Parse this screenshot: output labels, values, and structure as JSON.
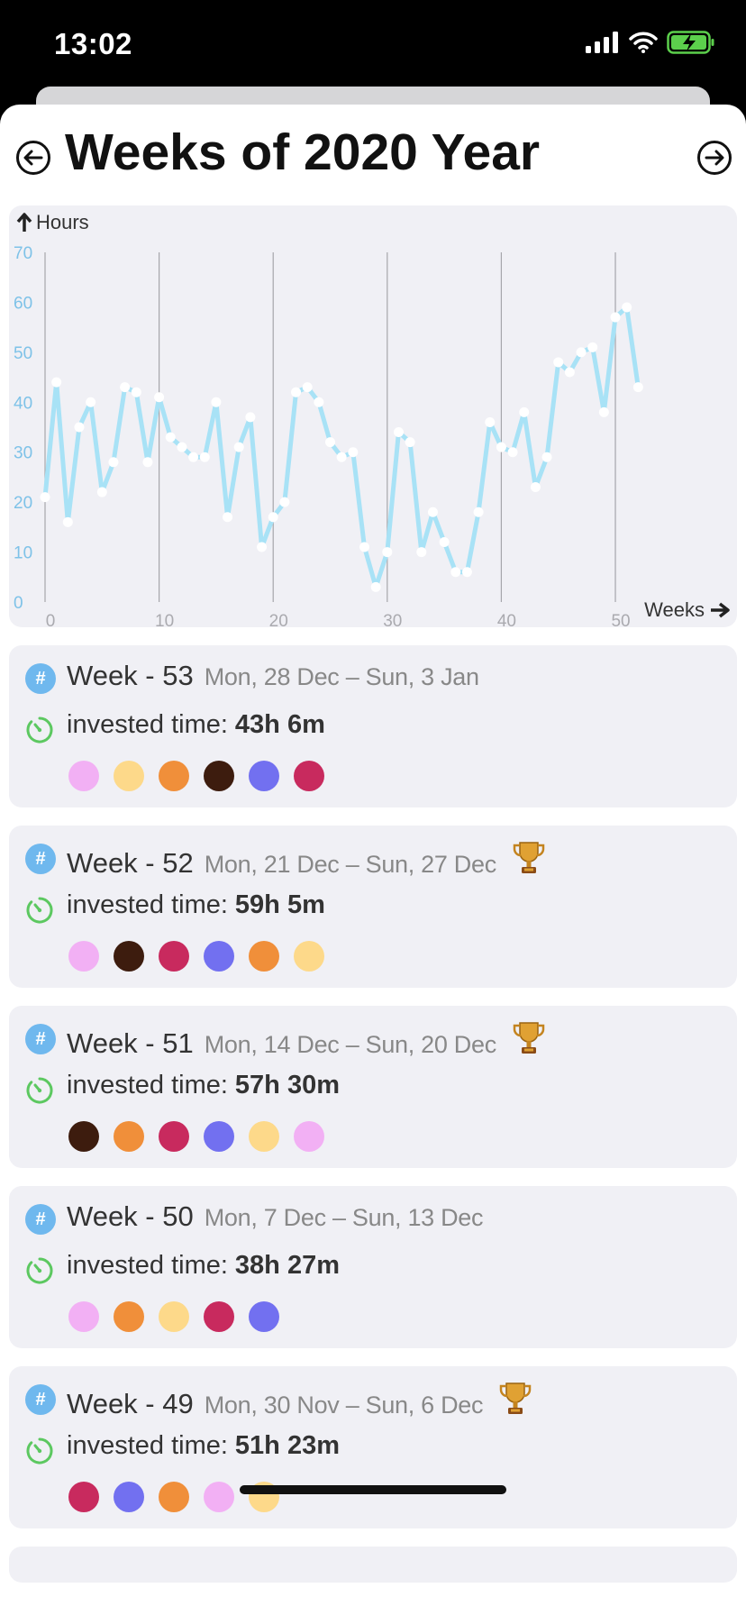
{
  "status_bar": {
    "time": "13:02"
  },
  "header": {
    "title": "Weeks of 2020 Year"
  },
  "chart_data": {
    "type": "line",
    "ylabel": "Hours",
    "xlabel": "Weeks",
    "ylim": [
      0,
      70
    ],
    "xlim": [
      0,
      53
    ],
    "yticks": [
      "0",
      "10",
      "20",
      "30",
      "40",
      "50",
      "60",
      "70"
    ],
    "xticks": [
      "0",
      "10",
      "20",
      "30",
      "40",
      "50"
    ],
    "grid": "vertical",
    "x": [
      0,
      1,
      2,
      3,
      4,
      5,
      6,
      7,
      8,
      9,
      10,
      11,
      12,
      13,
      14,
      15,
      16,
      17,
      18,
      19,
      20,
      21,
      22,
      23,
      24,
      25,
      26,
      27,
      28,
      29,
      30,
      31,
      32,
      33,
      34,
      35,
      36,
      37,
      38,
      39,
      40,
      41,
      42,
      43,
      44,
      45,
      46,
      47,
      48,
      49,
      50,
      51,
      52
    ],
    "values": [
      21,
      44,
      16,
      35,
      40,
      22,
      28,
      43,
      42,
      28,
      41,
      33,
      31,
      29,
      29,
      40,
      17,
      31,
      37,
      11,
      17,
      20,
      42,
      43,
      40,
      32,
      29,
      30,
      11,
      3,
      10,
      34,
      32,
      10,
      18,
      12,
      6,
      6,
      18,
      36,
      31,
      30,
      38,
      23,
      29,
      48,
      46,
      50,
      51,
      38,
      57,
      59,
      43
    ]
  },
  "weeks": [
    {
      "name": "Week - 53",
      "range": "Mon, 28 Dec –  Sun, 3 Jan",
      "invested_label": "invested time:",
      "invested": "43h 6m",
      "trophy": false,
      "dots": [
        "#f2b0f4",
        "#fdd98a",
        "#f08f3a",
        "#3d1c0e",
        "#7270f0",
        "#c82a5e"
      ]
    },
    {
      "name": "Week - 52",
      "range": "Mon, 21 Dec –  Sun, 27 Dec",
      "invested_label": "invested time:",
      "invested": "59h 5m",
      "trophy": true,
      "dots": [
        "#f2b0f4",
        "#3d1c0e",
        "#c82a5e",
        "#7270f0",
        "#f08f3a",
        "#fdd98a"
      ]
    },
    {
      "name": "Week - 51",
      "range": "Mon, 14 Dec –  Sun, 20 Dec",
      "invested_label": "invested time:",
      "invested": "57h 30m",
      "trophy": true,
      "dots": [
        "#3d1c0e",
        "#f08f3a",
        "#c82a5e",
        "#7270f0",
        "#fdd98a",
        "#f2b0f4"
      ]
    },
    {
      "name": "Week - 50",
      "range": "Mon, 7 Dec –  Sun, 13 Dec",
      "invested_label": "invested time:",
      "invested": "38h 27m",
      "trophy": false,
      "dots": [
        "#f2b0f4",
        "#f08f3a",
        "#fdd98a",
        "#c82a5e",
        "#7270f0"
      ]
    },
    {
      "name": "Week - 49",
      "range": "Mon, 30 Nov –  Sun, 6 Dec",
      "invested_label": "invested time:",
      "invested": "51h 23m",
      "trophy": true,
      "dots": [
        "#c82a5e",
        "#7270f0",
        "#f08f3a",
        "#f2b0f4",
        "#fdd98a"
      ]
    }
  ],
  "colors": {
    "line": "#a8e2f6",
    "axis_labels": "#7ec2e8",
    "hash_icon": "#6fb8ee",
    "clock_icon": "#5cc860"
  },
  "icons": {
    "prev": "arrow-left-circle-icon",
    "next": "arrow-right-circle-icon",
    "y_axis": "arrow-up-icon",
    "x_axis": "arrow-right-icon",
    "trophy": "trophy-icon",
    "clock": "clock-icon",
    "hash": "hash-icon"
  }
}
